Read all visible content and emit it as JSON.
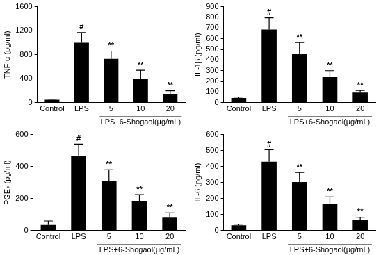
{
  "chart_data": [
    {
      "type": "bar",
      "y_label": "TNF-α (pg/ml)",
      "categories": [
        "Control",
        "LPS",
        "5",
        "10",
        "20"
      ],
      "values": [
        50,
        1000,
        730,
        400,
        140
      ],
      "errors": [
        10,
        170,
        130,
        140,
        60
      ],
      "color": "#000000",
      "ylim": [
        0,
        1600
      ],
      "yticks": [
        0,
        400,
        800,
        1200,
        1600
      ],
      "grid": false,
      "group_label": {
        "text": "LPS+6-Shogaol(μg/mL)",
        "categories": [
          "5",
          "10",
          "20"
        ]
      },
      "annotations": [
        {
          "category": "LPS",
          "text": "#"
        },
        {
          "category": "5",
          "text": "**"
        },
        {
          "category": "10",
          "text": "**"
        },
        {
          "category": "20",
          "text": "**"
        }
      ]
    },
    {
      "type": "bar",
      "y_label": "IL-1β (pg/ml)",
      "categories": [
        "Control",
        "LPS",
        "5",
        "10",
        "20"
      ],
      "values": [
        45,
        685,
        455,
        240,
        95
      ],
      "errors": [
        8,
        110,
        110,
        60,
        20
      ],
      "color": "#000000",
      "ylim": [
        0,
        900
      ],
      "yticks": [
        0,
        100,
        200,
        300,
        400,
        500,
        600,
        700,
        800,
        900
      ],
      "grid": false,
      "group_label": {
        "text": "LPS+6-Shogaol(μg/mL)",
        "categories": [
          "5",
          "10",
          "20"
        ]
      },
      "annotations": [
        {
          "category": "LPS",
          "text": "#"
        },
        {
          "category": "5",
          "text": "**"
        },
        {
          "category": "10",
          "text": "**"
        },
        {
          "category": "20",
          "text": "**"
        }
      ]
    },
    {
      "type": "bar",
      "y_label": "PGE₂ (pg/ml)",
      "categories": [
        "Control",
        "LPS",
        "5",
        "10",
        "20"
      ],
      "values": [
        35,
        465,
        310,
        185,
        80
      ],
      "errors": [
        25,
        75,
        70,
        40,
        30
      ],
      "color": "#000000",
      "ylim": [
        0,
        600
      ],
      "yticks": [
        0,
        200,
        400,
        600
      ],
      "grid": false,
      "group_label": {
        "text": "LPS+6-Shogaol(μg/mL)",
        "categories": [
          "5",
          "10",
          "20"
        ]
      },
      "annotations": [
        {
          "category": "LPS",
          "text": "#"
        },
        {
          "category": "5",
          "text": "**"
        },
        {
          "category": "10",
          "text": "**"
        },
        {
          "category": "20",
          "text": "**"
        }
      ]
    },
    {
      "type": "bar",
      "y_label": "IL-6 (pg/ml)",
      "categories": [
        "Control",
        "LPS",
        "5",
        "10",
        "20"
      ],
      "values": [
        33,
        430,
        303,
        165,
        65
      ],
      "errors": [
        7,
        75,
        60,
        45,
        18
      ],
      "color": "#000000",
      "ylim": [
        0,
        600
      ],
      "yticks": [
        0,
        100,
        200,
        300,
        400,
        500,
        600
      ],
      "grid": false,
      "group_label": {
        "text": "LPS+6-Shogaol(μg/mL)",
        "categories": [
          "5",
          "10",
          "20"
        ]
      },
      "annotations": [
        {
          "category": "LPS",
          "text": "#"
        },
        {
          "category": "5",
          "text": "**"
        },
        {
          "category": "10",
          "text": "**"
        },
        {
          "category": "20",
          "text": "**"
        }
      ]
    }
  ]
}
